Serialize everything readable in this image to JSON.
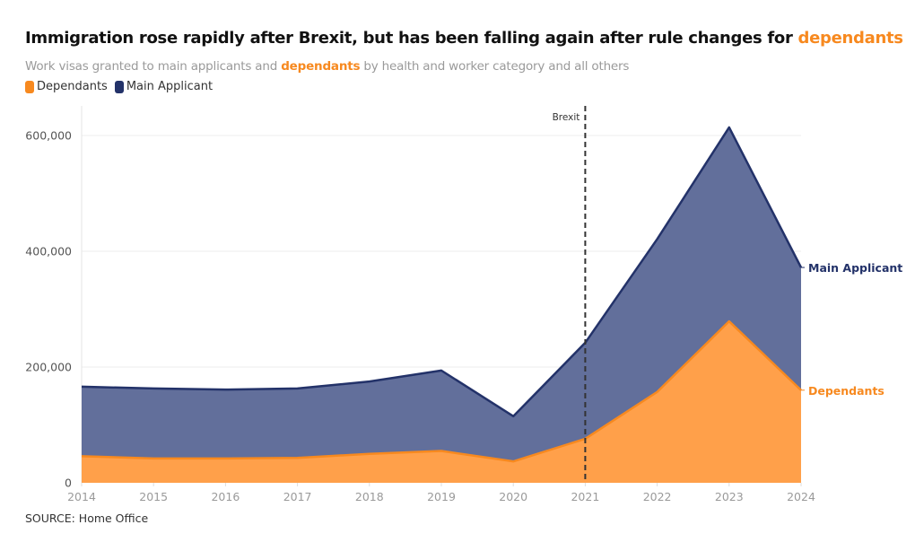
{
  "header": {
    "title_main": "Immigration rose rapidly after Brexit, but has been falling again after rule changes for ",
    "title_highlight": "dependants",
    "subtitle_pre": "Work visas granted to main applicants and ",
    "subtitle_highlight": "dependants",
    "subtitle_post": " by health and worker category and all others"
  },
  "legend": [
    {
      "label": "Dependants",
      "color": "#f7891f"
    },
    {
      "label": "Main Applicant",
      "color": "#233269"
    }
  ],
  "source": "SOURCE: Home Office",
  "colors": {
    "dependants_fill": "#ffa04a",
    "dependants_line": "#f7891f",
    "main_fill": "#626f9b",
    "main_line": "#233269",
    "highlight": "#f7891f"
  },
  "chart_data": {
    "type": "area",
    "stacked": true,
    "title": "Immigration rose rapidly after Brexit, but has been falling again after rule changes for dependants",
    "subtitle": "Work visas granted to main applicants and dependants by health and worker category and all others",
    "xlabel": "",
    "ylabel": "",
    "x": [
      2014,
      2015,
      2016,
      2017,
      2018,
      2019,
      2020,
      2021,
      2022,
      2023,
      2024
    ],
    "x_tick_labels": [
      "2014",
      "2015",
      "2016",
      "2017",
      "2018",
      "2019",
      "2020",
      "2021",
      "2022",
      "2023",
      "2024"
    ],
    "y_ticks": [
      0,
      200000,
      400000,
      600000
    ],
    "y_tick_labels": [
      "0",
      "200,000",
      "400,000",
      "600,000"
    ],
    "ylim": [
      0,
      650000
    ],
    "grid": true,
    "legend_position": "top-left",
    "series": [
      {
        "name": "Dependants",
        "values": [
          46000,
          42000,
          42000,
          43000,
          50000,
          55000,
          37000,
          76000,
          157000,
          279000,
          160000
        ]
      },
      {
        "name": "Main Applicant",
        "values": [
          120000,
          121000,
          119000,
          120000,
          125000,
          139000,
          78000,
          166000,
          264000,
          335000,
          212000
        ]
      }
    ],
    "totals": [
      166000,
      163000,
      161000,
      163000,
      175000,
      194000,
      115000,
      242000,
      421000,
      614000,
      372000
    ],
    "annotations": [
      {
        "type": "vline",
        "x": 2021,
        "label": "Brexit",
        "style": "dashed"
      }
    ],
    "end_labels": [
      {
        "series": "Main Applicant",
        "label": "Main Applicant"
      },
      {
        "series": "Dependants",
        "label": "Dependants"
      }
    ]
  }
}
